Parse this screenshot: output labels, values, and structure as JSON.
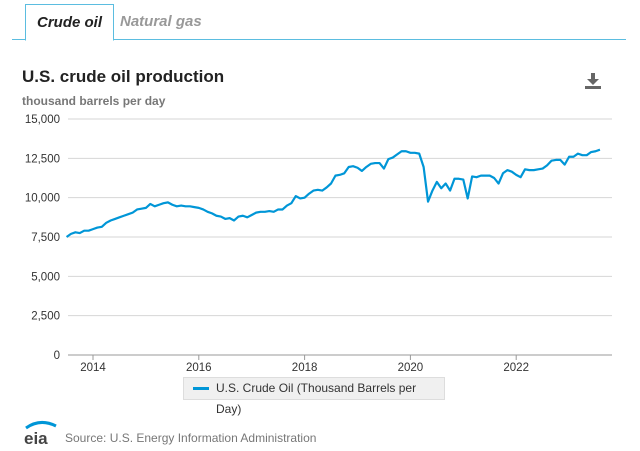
{
  "tabs": [
    {
      "label": "Crude oil",
      "active": true
    },
    {
      "label": "Natural gas",
      "active": false
    }
  ],
  "chart_title": "U.S. crude oil production",
  "units_label": "thousand barrels per day",
  "download_icon": "download-icon",
  "legend_label": "U.S. Crude Oil (Thousand Barrels per Day)",
  "source": "Source: U.S. Energy Information Administration",
  "logo_text": "eia",
  "chart_data": {
    "type": "line",
    "ylabel": "thousand barrels per day",
    "ylim": [
      0,
      15000
    ],
    "yticks": [
      "0",
      "2,500",
      "5,000",
      "7,500",
      "10,000",
      "12,500",
      "15,000"
    ],
    "xticks": [
      "2014",
      "2016",
      "2018",
      "2020",
      "2022"
    ],
    "grid": true,
    "legend_placement": "bottom",
    "color": "#0096d7",
    "series": [
      {
        "name": "U.S. Crude Oil (Thousand Barrels per Day)",
        "points": [
          [
            "2013-07",
            7500
          ],
          [
            "2013-08",
            7700
          ],
          [
            "2013-09",
            7800
          ],
          [
            "2013-10",
            7750
          ],
          [
            "2013-11",
            7900
          ],
          [
            "2013-12",
            7900
          ],
          [
            "2014-01",
            8000
          ],
          [
            "2014-02",
            8100
          ],
          [
            "2014-03",
            8150
          ],
          [
            "2014-04",
            8400
          ],
          [
            "2014-05",
            8550
          ],
          [
            "2014-06",
            8650
          ],
          [
            "2014-07",
            8750
          ],
          [
            "2014-08",
            8850
          ],
          [
            "2014-09",
            8950
          ],
          [
            "2014-10",
            9050
          ],
          [
            "2014-11",
            9250
          ],
          [
            "2014-12",
            9300
          ],
          [
            "2015-01",
            9350
          ],
          [
            "2015-02",
            9600
          ],
          [
            "2015-03",
            9450
          ],
          [
            "2015-04",
            9550
          ],
          [
            "2015-05",
            9650
          ],
          [
            "2015-06",
            9700
          ],
          [
            "2015-07",
            9550
          ],
          [
            "2015-08",
            9450
          ],
          [
            "2015-09",
            9500
          ],
          [
            "2015-10",
            9450
          ],
          [
            "2015-11",
            9450
          ],
          [
            "2015-12",
            9400
          ],
          [
            "2016-01",
            9350
          ],
          [
            "2016-02",
            9250
          ],
          [
            "2016-03",
            9100
          ],
          [
            "2016-04",
            9000
          ],
          [
            "2016-05",
            8850
          ],
          [
            "2016-06",
            8800
          ],
          [
            "2016-07",
            8650
          ],
          [
            "2016-08",
            8700
          ],
          [
            "2016-09",
            8550
          ],
          [
            "2016-10",
            8800
          ],
          [
            "2016-11",
            8850
          ],
          [
            "2016-12",
            8750
          ],
          [
            "2017-01",
            8900
          ],
          [
            "2017-02",
            9050
          ],
          [
            "2017-03",
            9100
          ],
          [
            "2017-04",
            9100
          ],
          [
            "2017-05",
            9150
          ],
          [
            "2017-06",
            9100
          ],
          [
            "2017-07",
            9250
          ],
          [
            "2017-08",
            9250
          ],
          [
            "2017-09",
            9500
          ],
          [
            "2017-10",
            9650
          ],
          [
            "2017-11",
            10100
          ],
          [
            "2017-12",
            9950
          ],
          [
            "2018-01",
            10000
          ],
          [
            "2018-02",
            10250
          ],
          [
            "2018-03",
            10450
          ],
          [
            "2018-04",
            10500
          ],
          [
            "2018-05",
            10450
          ],
          [
            "2018-06",
            10650
          ],
          [
            "2018-07",
            10900
          ],
          [
            "2018-08",
            11400
          ],
          [
            "2018-09",
            11450
          ],
          [
            "2018-10",
            11550
          ],
          [
            "2018-11",
            11950
          ],
          [
            "2018-12",
            12000
          ],
          [
            "2019-01",
            11900
          ],
          [
            "2019-02",
            11700
          ],
          [
            "2019-03",
            11950
          ],
          [
            "2019-04",
            12150
          ],
          [
            "2019-05",
            12200
          ],
          [
            "2019-06",
            12200
          ],
          [
            "2019-07",
            11850
          ],
          [
            "2019-08",
            12450
          ],
          [
            "2019-09",
            12550
          ],
          [
            "2019-10",
            12750
          ],
          [
            "2019-11",
            12950
          ],
          [
            "2019-12",
            12950
          ],
          [
            "2020-01",
            12850
          ],
          [
            "2020-02",
            12850
          ],
          [
            "2020-03",
            12800
          ],
          [
            "2020-04",
            11950
          ],
          [
            "2020-05",
            9750
          ],
          [
            "2020-06",
            10450
          ],
          [
            "2020-07",
            11000
          ],
          [
            "2020-08",
            10600
          ],
          [
            "2020-09",
            10900
          ],
          [
            "2020-10",
            10450
          ],
          [
            "2020-11",
            11200
          ],
          [
            "2020-12",
            11200
          ],
          [
            "2021-01",
            11150
          ],
          [
            "2021-02",
            9950
          ],
          [
            "2021-03",
            11350
          ],
          [
            "2021-04",
            11300
          ],
          [
            "2021-05",
            11400
          ],
          [
            "2021-06",
            11400
          ],
          [
            "2021-07",
            11400
          ],
          [
            "2021-08",
            11250
          ],
          [
            "2021-09",
            10900
          ],
          [
            "2021-10",
            11550
          ],
          [
            "2021-11",
            11750
          ],
          [
            "2021-12",
            11650
          ],
          [
            "2022-01",
            11450
          ],
          [
            "2022-02",
            11300
          ],
          [
            "2022-03",
            11800
          ],
          [
            "2022-04",
            11750
          ],
          [
            "2022-05",
            11750
          ],
          [
            "2022-06",
            11800
          ],
          [
            "2022-07",
            11850
          ],
          [
            "2022-08",
            12050
          ],
          [
            "2022-09",
            12350
          ],
          [
            "2022-10",
            12400
          ],
          [
            "2022-11",
            12400
          ],
          [
            "2022-12",
            12100
          ],
          [
            "2023-01",
            12600
          ],
          [
            "2023-02",
            12600
          ],
          [
            "2023-03",
            12800
          ],
          [
            "2023-04",
            12700
          ],
          [
            "2023-05",
            12700
          ],
          [
            "2023-06",
            12900
          ],
          [
            "2023-07",
            12950
          ],
          [
            "2023-08",
            13050
          ]
        ]
      }
    ]
  }
}
